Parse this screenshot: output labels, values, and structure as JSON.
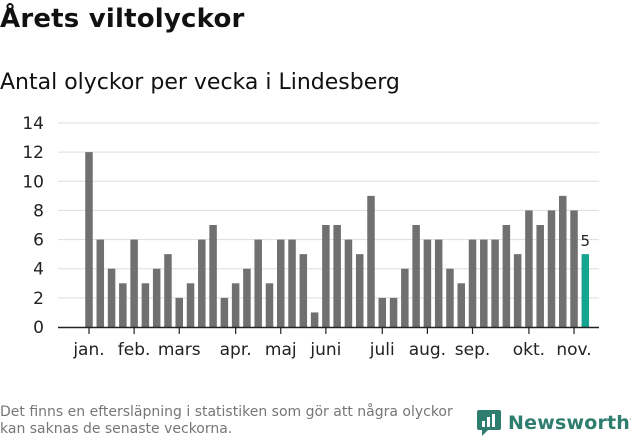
{
  "header": {
    "title": "Årets viltolyckor",
    "subtitle": "Antal olyckor per vecka i Lindesberg"
  },
  "footer": {
    "note": "Det finns en eftersläpning i statistiken som gör att några olyckor kan saknas de senaste veckorna.",
    "brand": "Newsworthy"
  },
  "colors": {
    "bar": "#707070",
    "highlight": "#13a58f",
    "grid": "#dddddd",
    "brand": "#2e7d6e"
  },
  "chart_data": {
    "type": "bar",
    "title": "Antal olyckor per vecka i Lindesberg",
    "xlabel": "",
    "ylabel": "",
    "ylim": [
      0,
      14
    ],
    "yticks": [
      0,
      2,
      4,
      6,
      8,
      10,
      12,
      14
    ],
    "grid": true,
    "values": [
      12,
      6,
      4,
      3,
      6,
      3,
      4,
      5,
      2,
      3,
      6,
      7,
      2,
      3,
      4,
      6,
      3,
      6,
      6,
      5,
      1,
      7,
      7,
      6,
      5,
      9,
      2,
      2,
      4,
      7,
      6,
      6,
      4,
      3,
      6,
      6,
      6,
      7,
      5,
      8,
      7,
      8,
      9,
      8,
      5
    ],
    "highlight_index": 44,
    "highlight_label": "5",
    "month_labels": [
      {
        "label": "jan.",
        "bar": 0
      },
      {
        "label": "feb.",
        "bar": 4
      },
      {
        "label": "mars",
        "bar": 8
      },
      {
        "label": "apr.",
        "bar": 13
      },
      {
        "label": "maj",
        "bar": 17
      },
      {
        "label": "juni",
        "bar": 21
      },
      {
        "label": "juli",
        "bar": 26
      },
      {
        "label": "aug.",
        "bar": 30
      },
      {
        "label": "sep.",
        "bar": 34
      },
      {
        "label": "okt.",
        "bar": 39
      },
      {
        "label": "nov.",
        "bar": 43
      }
    ]
  }
}
